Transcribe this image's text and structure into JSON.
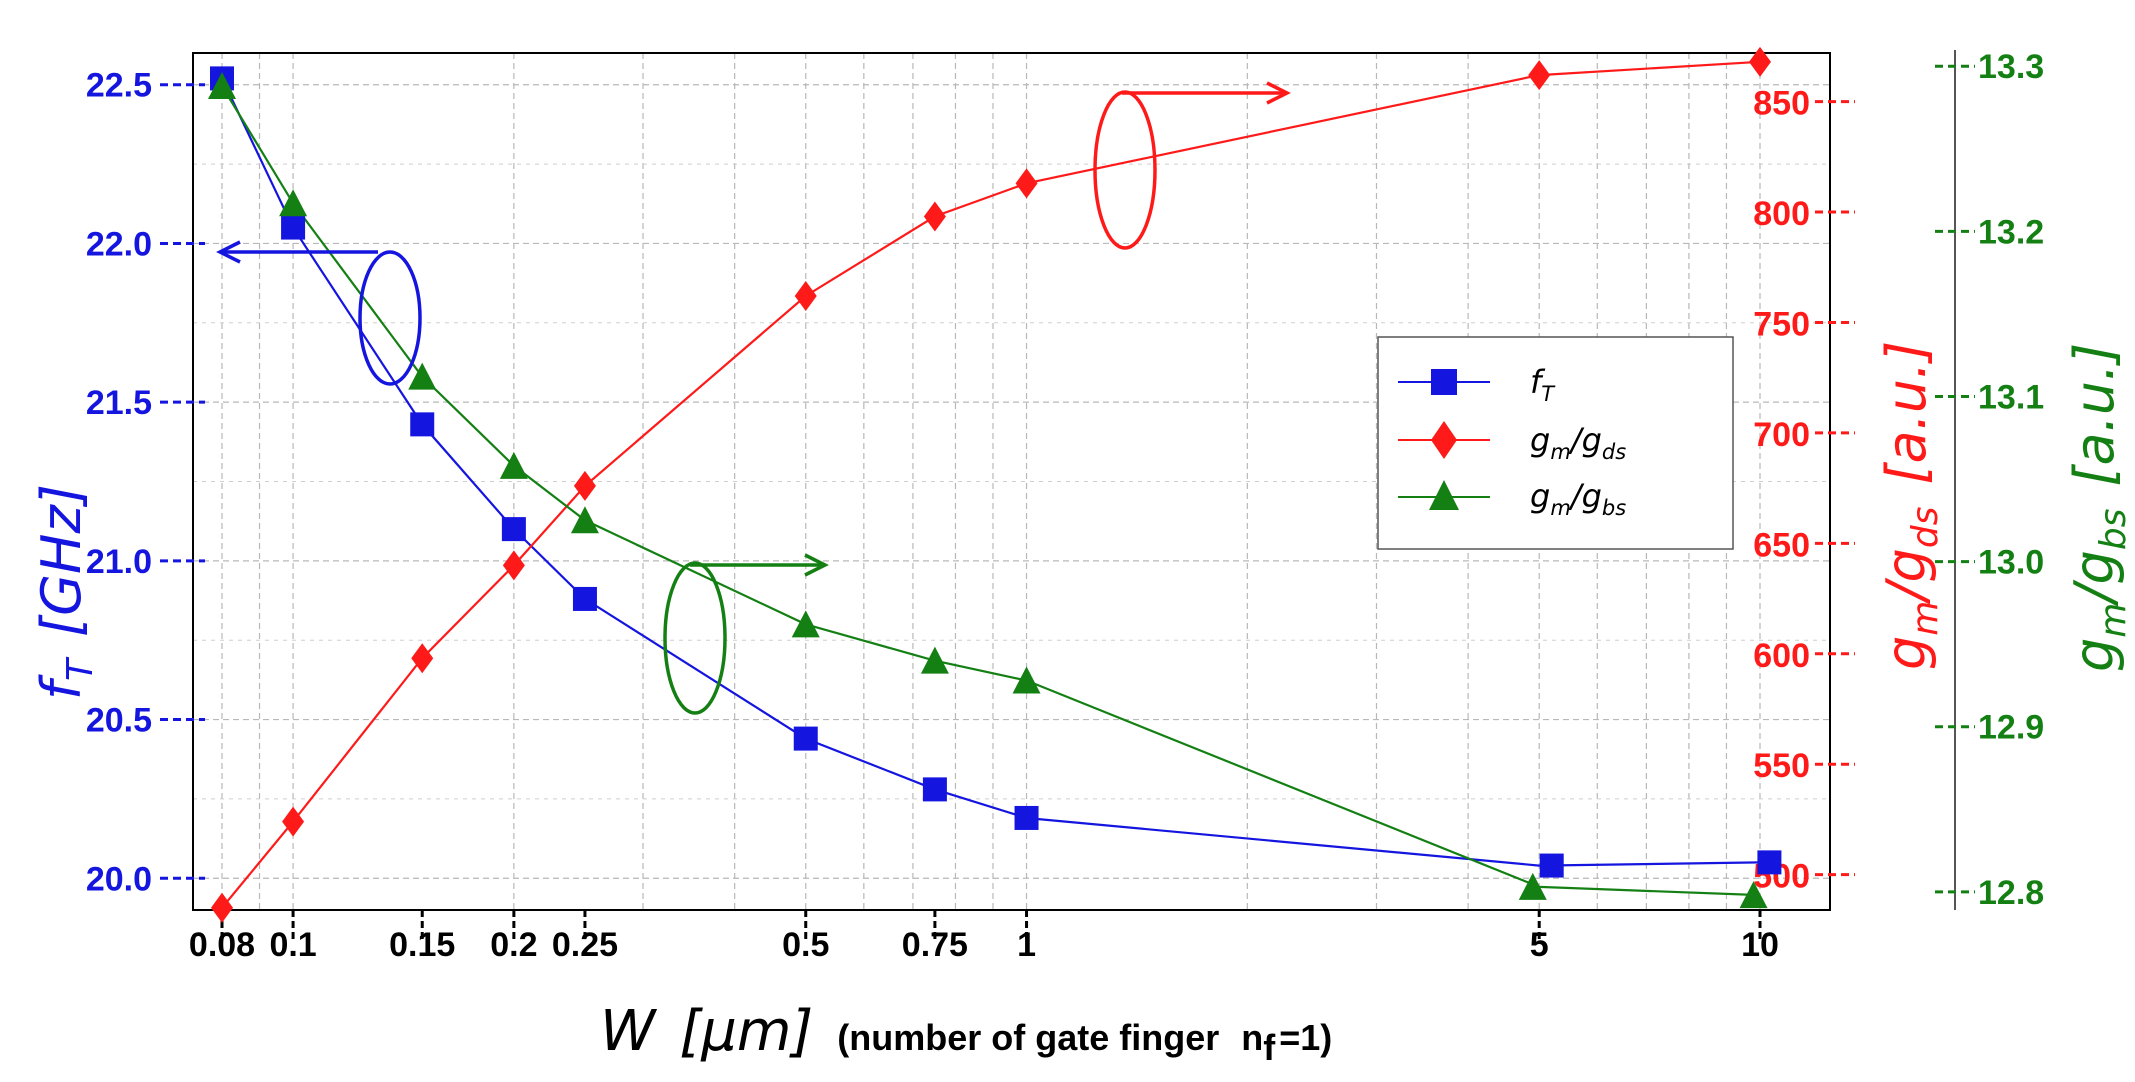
{
  "chart_data": {
    "type": "line",
    "x_scale": "log",
    "x": [
      0.08,
      0.1,
      0.15,
      0.2,
      0.25,
      0.5,
      0.75,
      1,
      5,
      10
    ],
    "xticks": [
      "0.08",
      "0.1",
      "0.15",
      "0.2",
      "0.25",
      "0.5",
      "0.75",
      "1",
      "5",
      "10"
    ],
    "xlabel": {
      "symbol": "W",
      "unit": "[μm]",
      "note": "(number of gate finger",
      "note_sub": "f",
      "note_end": "=1)",
      "note_n": "n"
    },
    "grid": true,
    "legend_position": "center-right",
    "axes": {
      "left": {
        "ylim": [
          19.9,
          22.6
        ],
        "ticks": [
          "20.0",
          "20.5",
          "21.0",
          "21.5",
          "22.0",
          "22.5"
        ],
        "label_main": "f",
        "label_sub": "T",
        "label_unit": "[GHz]",
        "color": "#1515e0"
      },
      "right1": {
        "ylim": [
          484,
          872
        ],
        "ticks": [
          "500",
          "550",
          "600",
          "650",
          "700",
          "750",
          "800",
          "850"
        ],
        "label_main": "g",
        "label_sub1": "m",
        "label_mid": "/g",
        "label_sub2": "ds",
        "label_unit": "[a.u.]",
        "color": "#ff1a1a"
      },
      "right2": {
        "ylim": [
          12.789,
          13.308
        ],
        "ticks": [
          "12.8",
          "12.9",
          "13.0",
          "13.1",
          "13.2",
          "13.3"
        ],
        "label_main": "g",
        "label_sub1": "m",
        "label_mid": "/g",
        "label_sub2": "bs",
        "label_unit": "[a.u.]",
        "color": "#148014"
      }
    },
    "series": [
      {
        "name": "f",
        "name_sub": "T",
        "axis": "left",
        "color": "#1515e0",
        "marker": "square",
        "values": [
          22.52,
          22.05,
          21.43,
          21.1,
          20.88,
          20.44,
          20.28,
          20.19,
          20.04,
          20.05
        ],
        "marker_x": [
          0.08,
          0.1,
          0.15,
          0.2,
          0.25,
          0.5,
          0.75,
          1,
          5.2,
          10.3
        ]
      },
      {
        "name": "g",
        "name_sub1": "m",
        "name_mid": "/g",
        "name_sub2": "ds",
        "axis": "right1",
        "color": "#ff1a1a",
        "marker": "diamond",
        "values": [
          485,
          524,
          598,
          640,
          676,
          762,
          798,
          813,
          862,
          868
        ]
      },
      {
        "name": "g",
        "name_sub1": "m",
        "name_mid": "/g",
        "name_sub2": "bs",
        "axis": "right2",
        "color": "#148014",
        "marker": "triangle",
        "values": [
          13.288,
          13.217,
          13.112,
          13.058,
          13.025,
          12.962,
          12.94,
          12.928,
          12.803,
          12.798
        ],
        "marker_x": [
          0.08,
          0.1,
          0.15,
          0.2,
          0.25,
          0.5,
          0.75,
          1,
          4.9,
          9.8
        ]
      }
    ]
  }
}
